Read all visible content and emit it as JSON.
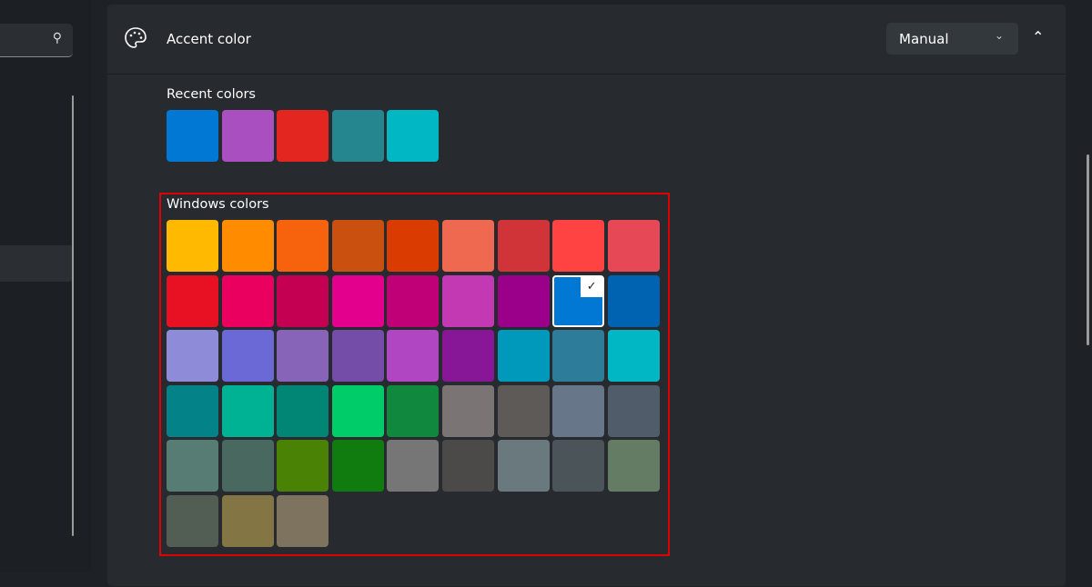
{
  "header": {
    "title": "Accent color",
    "mode": "Manual",
    "icon": "palette-icon"
  },
  "recent": {
    "label": "Recent colors",
    "colors": [
      "#0078d4",
      "#a94fc0",
      "#e3261f",
      "#26868f",
      "#00b7c3"
    ]
  },
  "windows": {
    "label": "Windows colors",
    "selected_index": 16,
    "colors": [
      "#ffb900",
      "#ff8c00",
      "#f7630c",
      "#ca5010",
      "#da3b01",
      "#ef6950",
      "#d13438",
      "#ff4343",
      "#e74856",
      "#e81123",
      "#ea005e",
      "#c30052",
      "#e3008c",
      "#bf0077",
      "#c239b3",
      "#9a0089",
      "#0078d4",
      "#0063b1",
      "#8e8cd8",
      "#6b69d6",
      "#8764b8",
      "#744da9",
      "#b146c2",
      "#881798",
      "#0099bc",
      "#2d7d9a",
      "#00b7c3",
      "#038387",
      "#00b294",
      "#018574",
      "#00cc6a",
      "#10893e",
      "#7a7574",
      "#5d5a58",
      "#68768a",
      "#515c6b",
      "#567c73",
      "#486860",
      "#498205",
      "#107c10",
      "#767676",
      "#4c4a48",
      "#69797e",
      "#4a5459",
      "#647c64",
      "#525e54",
      "#847545",
      "#7e735f"
    ]
  }
}
